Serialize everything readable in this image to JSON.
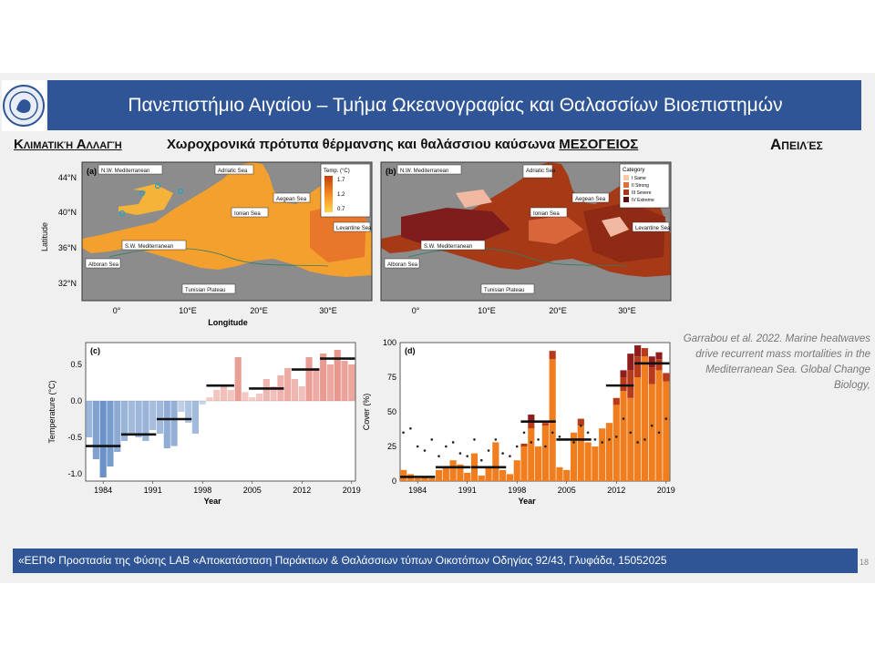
{
  "header": {
    "title": "Πανεπιστήμιο Αιγαίου – Τμήμα Ωκεανογραφίας και Θαλασσίων Βιοεπιστημών"
  },
  "headings": {
    "left": "Κλιματική Αλλαγή",
    "center_main": "Χωροχρονικά πρότυπα θέρμανσης και θαλάσσιου καύσωνα",
    "center_underlined": "ΜΕΣΟΓΕΙΟΣ",
    "right": "Απειλές"
  },
  "citation": "Garrabou et al. 2022. Marine heatwaves drive recurrent mass mortalities in the Mediterranean Sea. Global Change Biology,",
  "footer": {
    "text": "«ΕΕΠΦ Προστασία της Φύσης LAB «Αποκατάσταση Παράκτιων & Θαλάσσιων τύπων Οικοτόπων Οδηγίας 92/43, Γλυφάδα, 15052025",
    "page": "18"
  },
  "maps": {
    "lat_ticks": [
      "44°N",
      "40°N",
      "36°N",
      "32°N"
    ],
    "lon_ticks": [
      "0°",
      "10°E",
      "20°E",
      "30°E"
    ],
    "ylabel": "Latitude",
    "xlabel": "Longitude",
    "a": {
      "panel": "(a)",
      "regions": [
        "N.W. Mediterranean",
        "Adriatic Sea",
        "Aegean Sea",
        "Ionian Sea",
        "S.W. Mediterranean",
        "Levantine Sea",
        "Alboran Sea",
        "Tunisian Plateau"
      ],
      "legend_title": "Temp. (°C)",
      "legend_ticks": [
        "1.7",
        "1.2",
        "0.7"
      ]
    },
    "b": {
      "panel": "(b)",
      "regions": [
        "N.W. Mediterranean",
        "Adriatic Sea",
        "Aegean Sea",
        "Ionian Sea",
        "S.W. Mediterranean",
        "Levantine Sea",
        "Alboran Sea",
        "Tunisian Plateau"
      ],
      "legend_title": "Category",
      "legend_items": [
        "I Same",
        "II Strong",
        "III Severe",
        "IV Extreme"
      ]
    }
  },
  "chart_data": [
    {
      "type": "bar",
      "panel": "(c)",
      "xlabel": "Year",
      "ylabel": "Temperature (°C)",
      "xlim": [
        1982,
        2020
      ],
      "ylim": [
        -1.1,
        0.8
      ],
      "x_ticks": [
        "1984",
        "1991",
        "1998",
        "2005",
        "2012",
        "2019"
      ],
      "y_ticks": [
        "0.5",
        "0.0",
        "-0.5",
        "-1.0"
      ],
      "x": [
        1982,
        1983,
        1984,
        1985,
        1986,
        1987,
        1988,
        1989,
        1990,
        1991,
        1992,
        1993,
        1994,
        1995,
        1996,
        1997,
        1998,
        1999,
        2000,
        2001,
        2002,
        2003,
        2004,
        2005,
        2006,
        2007,
        2008,
        2009,
        2010,
        2011,
        2012,
        2013,
        2014,
        2015,
        2016,
        2017,
        2018,
        2019
      ],
      "values": [
        -0.5,
        -0.8,
        -1.05,
        -0.9,
        -0.7,
        -0.55,
        -0.45,
        -0.5,
        -0.55,
        -0.4,
        -0.45,
        -0.65,
        -0.62,
        -0.15,
        -0.3,
        -0.45,
        -0.05,
        0.05,
        0.15,
        0.2,
        0.15,
        0.6,
        0.12,
        0.05,
        0.1,
        0.3,
        0.2,
        0.35,
        0.45,
        0.3,
        0.2,
        0.6,
        0.45,
        0.65,
        0.5,
        0.7,
        0.55,
        0.5
      ],
      "decadal_means": [
        {
          "x_start": 1982,
          "x_end": 1986,
          "value": -0.62
        },
        {
          "x_start": 1987,
          "x_end": 1991,
          "value": -0.46
        },
        {
          "x_start": 1992,
          "x_end": 1996,
          "value": -0.25
        },
        {
          "x_start": 1999,
          "x_end": 2002,
          "value": 0.21
        },
        {
          "x_start": 2005,
          "x_end": 2009,
          "value": 0.17
        },
        {
          "x_start": 2011,
          "x_end": 2014,
          "value": 0.43
        },
        {
          "x_start": 2015,
          "x_end": 2019,
          "value": 0.58
        }
      ]
    },
    {
      "type": "bar",
      "panel": "(d)",
      "xlabel": "Year",
      "ylabel": "Cover (%)",
      "xlim": [
        1982,
        2020
      ],
      "ylim": [
        0,
        100
      ],
      "x_ticks": [
        "1984",
        "1991",
        "1998",
        "2005",
        "2012",
        "2019"
      ],
      "y_ticks": [
        "100",
        "75",
        "50",
        "25",
        "0"
      ],
      "x": [
        1982,
        1983,
        1984,
        1985,
        1986,
        1987,
        1988,
        1989,
        1990,
        1991,
        1992,
        1993,
        1994,
        1995,
        1996,
        1997,
        1998,
        1999,
        2000,
        2001,
        2002,
        2003,
        2004,
        2005,
        2006,
        2007,
        2008,
        2009,
        2010,
        2011,
        2012,
        2013,
        2014,
        2015,
        2016,
        2017,
        2018,
        2019
      ],
      "series": [
        {
          "values": [
            8,
            5,
            2,
            3,
            2,
            8,
            10,
            15,
            12,
            6,
            20,
            4,
            10,
            28,
            8,
            5,
            15,
            25,
            38,
            25,
            40,
            88,
            10,
            8,
            35,
            40,
            28,
            25,
            38,
            42,
            55,
            65,
            60,
            75,
            90,
            70,
            80,
            72
          ]
        },
        {
          "values": [
            0,
            0,
            0,
            0,
            0,
            0,
            0,
            0,
            0,
            0,
            0,
            0,
            0,
            0,
            0,
            0,
            0,
            2,
            5,
            0,
            2,
            6,
            0,
            0,
            0,
            5,
            0,
            0,
            0,
            0,
            5,
            10,
            20,
            15,
            6,
            12,
            8,
            6
          ]
        },
        {
          "values": [
            0,
            0,
            0,
            0,
            0,
            0,
            0,
            0,
            0,
            0,
            0,
            0,
            0,
            0,
            0,
            0,
            0,
            0,
            5,
            0,
            0,
            0,
            0,
            0,
            0,
            0,
            0,
            0,
            0,
            0,
            0,
            5,
            12,
            8,
            0,
            8,
            5,
            0
          ]
        }
      ],
      "points": [
        35,
        38,
        25,
        22,
        30,
        18,
        25,
        28,
        20,
        18,
        30,
        15,
        22,
        30,
        20,
        18,
        25,
        35,
        28,
        30,
        25,
        35,
        32,
        30,
        28,
        40,
        35,
        30,
        28,
        30,
        32,
        45,
        35,
        28,
        30,
        40,
        35,
        45
      ],
      "decadal_means": [
        {
          "x_start": 1982,
          "x_end": 1986,
          "value": 3
        },
        {
          "x_start": 1987,
          "x_end": 1991,
          "value": 10
        },
        {
          "x_start": 1992,
          "x_end": 1996,
          "value": 10
        },
        {
          "x_start": 1999,
          "x_end": 2003,
          "value": 43
        },
        {
          "x_start": 2004,
          "x_end": 2008,
          "value": 30
        },
        {
          "x_start": 2011,
          "x_end": 2014,
          "value": 69
        },
        {
          "x_start": 2015,
          "x_end": 2019,
          "value": 85
        }
      ]
    }
  ],
  "colors": {
    "title_bar": "#2f5596",
    "negative_bar": "#6b92c7",
    "positive_bar": "#e27a6e",
    "cover_bar": "#f07d1e",
    "cover_dark": "#8f1d1d",
    "map_sea": "#f3a02e",
    "map_land": "#8c8c8c"
  }
}
